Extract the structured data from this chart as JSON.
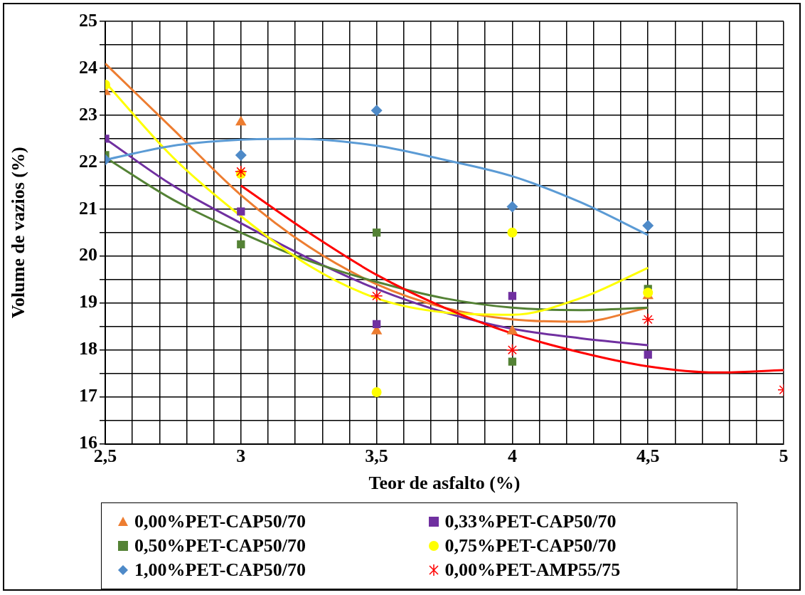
{
  "chart_data": {
    "type": "scatter",
    "xlabel": "Teor de asfalto (%)",
    "ylabel": "Volume de vazios (%)",
    "xlim": [
      2.5,
      5
    ],
    "ylim": [
      16,
      25
    ],
    "xticks": [
      {
        "value": 2.5,
        "label": "2,5"
      },
      {
        "value": 2.6,
        "label": null
      },
      {
        "value": 2.7,
        "label": null
      },
      {
        "value": 2.8,
        "label": null
      },
      {
        "value": 2.9,
        "label": null
      },
      3,
      {
        "value": 3.1,
        "label": null
      },
      {
        "value": 3.2,
        "label": null
      },
      {
        "value": 3.3,
        "label": null
      },
      {
        "value": 3.4,
        "label": null
      },
      {
        "value": 3.5,
        "label": "3,5"
      },
      {
        "value": 3.6,
        "label": null
      },
      {
        "value": 3.7,
        "label": null
      },
      {
        "value": 3.8,
        "label": null
      },
      {
        "value": 3.9,
        "label": null
      },
      4,
      {
        "value": 4.1,
        "label": null
      },
      {
        "value": 4.2,
        "label": null
      },
      {
        "value": 4.3,
        "label": null
      },
      {
        "value": 4.4,
        "label": null
      },
      {
        "value": 4.5,
        "label": "4,5"
      },
      {
        "value": 4.6,
        "label": null
      },
      {
        "value": 4.7,
        "label": null
      },
      {
        "value": 4.8,
        "label": null
      },
      {
        "value": 4.9,
        "label": null
      },
      5
    ],
    "yticks": [
      16,
      {
        "value": 16.5,
        "label": null
      },
      17,
      {
        "value": 17.5,
        "label": null
      },
      18,
      {
        "value": 18.5,
        "label": null
      },
      19,
      {
        "value": 19.5,
        "label": null
      },
      20,
      {
        "value": 20.5,
        "label": null
      },
      21,
      {
        "value": 21.5,
        "label": null
      },
      22,
      {
        "value": 22.5,
        "label": null
      },
      23,
      {
        "value": 23.5,
        "label": null
      },
      24,
      {
        "value": 24.5,
        "label": null
      },
      25
    ],
    "grid": true,
    "legend": "bottom",
    "series": [
      {
        "name": "0,00%PET-CAP50/70",
        "color": "#ed7d31",
        "marker": "triangle",
        "x": [
          2.5,
          3,
          3.5,
          4,
          4.5
        ],
        "values": [
          23.5,
          22.85,
          18.4,
          18.4,
          19.15
        ]
      },
      {
        "name": "0,33%PET-CAP50/70",
        "color": "#7030a0",
        "marker": "square",
        "x": [
          2.5,
          3,
          3.5,
          4,
          4.5
        ],
        "values": [
          22.5,
          20.95,
          18.55,
          19.15,
          17.9
        ]
      },
      {
        "name": "0,50%PET-CAP50/70",
        "color": "#548235",
        "marker": "square",
        "x": [
          2.5,
          3,
          3.5,
          4,
          4.5
        ],
        "values": [
          22.15,
          20.25,
          20.5,
          17.75,
          19.3
        ]
      },
      {
        "name": "0,75%PET-CAP50/70",
        "color": "#ffff00",
        "marker": "circle",
        "x": [
          2.5,
          3,
          3.5,
          4,
          4.5
        ],
        "values": [
          23.65,
          21.75,
          17.1,
          20.5,
          19.22
        ]
      },
      {
        "name": "1,00%PET-CAP50/70",
        "color": "#4e8ac8",
        "marker": "diamond",
        "x": [
          2.5,
          3,
          3.5,
          4,
          4.5
        ],
        "values": [
          22.05,
          22.15,
          23.1,
          21.05,
          20.65
        ]
      },
      {
        "name": "0,00%PET-AMP55/75",
        "color": "#ff0000",
        "marker": "cross",
        "x": [
          3,
          3.5,
          4,
          4.5,
          5
        ],
        "values": [
          21.8,
          19.15,
          18.0,
          18.65,
          17.15
        ]
      },
      {
        "type": "line",
        "color": "#ed7d31",
        "marker": "none",
        "x": [
          2.5,
          2.75,
          3,
          3.25,
          3.5,
          3.75,
          4,
          4.25,
          4.5
        ],
        "values": [
          24.1,
          22.7,
          21.3,
          20.2,
          19.4,
          18.9,
          18.65,
          18.6,
          18.9
        ]
      },
      {
        "type": "line",
        "color": "#7030a0",
        "marker": "none",
        "x": [
          2.5,
          2.75,
          3,
          3.25,
          3.5,
          3.75,
          4,
          4.25,
          4.5
        ],
        "values": [
          22.5,
          21.5,
          20.7,
          19.95,
          19.3,
          18.8,
          18.45,
          18.25,
          18.1
        ]
      },
      {
        "type": "line",
        "color": "#548235",
        "marker": "none",
        "x": [
          2.5,
          2.75,
          3,
          3.25,
          3.5,
          3.75,
          4,
          4.25,
          4.5
        ],
        "values": [
          22.1,
          21.2,
          20.5,
          19.9,
          19.45,
          19.1,
          18.9,
          18.85,
          18.9
        ]
      },
      {
        "type": "line",
        "color": "#ffff00",
        "marker": "none",
        "x": [
          2.5,
          2.75,
          3,
          3.25,
          3.5,
          3.75,
          4,
          4.25,
          4.5
        ],
        "values": [
          23.7,
          22.1,
          20.85,
          19.8,
          19.1,
          18.8,
          18.75,
          19.1,
          19.75
        ]
      },
      {
        "type": "line",
        "color": "#5b9bd5",
        "marker": "none",
        "x": [
          2.5,
          2.75,
          3,
          3.2,
          3.5,
          3.75,
          4,
          4.25,
          4.5
        ],
        "values": [
          22.05,
          22.35,
          22.48,
          22.5,
          22.35,
          22.05,
          21.7,
          21.15,
          20.45
        ]
      },
      {
        "type": "line",
        "color": "#ff0000",
        "marker": "none",
        "x": [
          3,
          3.25,
          3.5,
          3.75,
          4,
          4.25,
          4.5,
          4.75,
          5
        ],
        "values": [
          21.5,
          20.5,
          19.6,
          18.9,
          18.35,
          17.95,
          17.65,
          17.52,
          17.57
        ]
      }
    ]
  }
}
